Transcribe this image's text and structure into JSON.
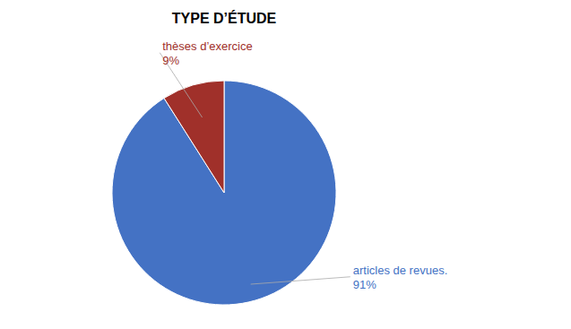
{
  "chart_data": {
    "type": "pie",
    "title": "TYPE D’ÉTUDE",
    "categories": [
      "articles de revues.",
      "thèses d’exercice"
    ],
    "values": [
      91,
      9
    ],
    "value_labels": [
      "91%",
      "9%"
    ],
    "colors": [
      "#4472C4",
      "#A0302A"
    ],
    "data_labels": true
  }
}
